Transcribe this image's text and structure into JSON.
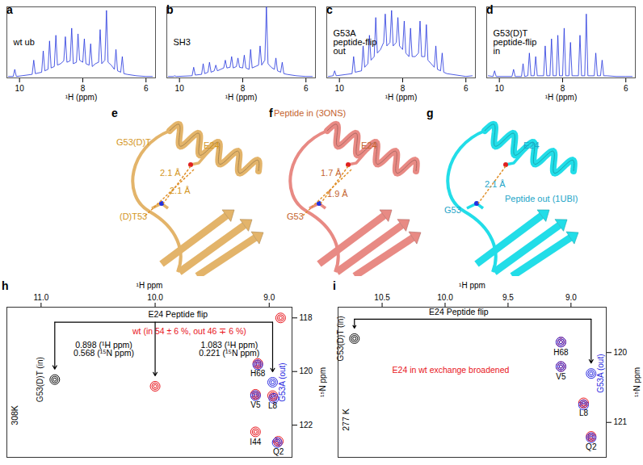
{
  "chart_data": [
    {
      "type": "line",
      "panel": "a",
      "annotations": [
        {
          "text": "wt ub",
          "color": "#000000"
        }
      ],
      "x_label": "¹H (ppm)",
      "color": "#2233dd",
      "x": [
        10.35,
        10.2,
        10.15,
        10.1,
        9.6,
        9.55,
        9.5,
        9.3,
        9.25,
        9.2,
        9.1,
        9.05,
        9.0,
        8.9,
        8.85,
        8.8,
        8.7,
        8.6,
        8.55,
        8.5,
        8.4,
        8.35,
        8.3,
        8.2,
        8.15,
        8.1,
        8.0,
        7.95,
        7.9,
        7.8,
        7.75,
        7.7,
        7.6,
        7.5,
        7.45,
        7.4,
        7.3,
        7.25,
        7.2,
        7.1,
        7.0,
        6.95,
        6.9,
        6.8,
        6.75,
        6.7,
        6.6,
        6.3,
        6.0,
        5.8
      ],
      "values": [
        2,
        2,
        12,
        2,
        5,
        25,
        6,
        8,
        38,
        10,
        12,
        52,
        14,
        16,
        60,
        18,
        20,
        24,
        58,
        22,
        24,
        70,
        20,
        22,
        62,
        25,
        22,
        55,
        20,
        18,
        48,
        16,
        20,
        22,
        68,
        20,
        25,
        95,
        22,
        18,
        12,
        40,
        10,
        8,
        30,
        6,
        5,
        3,
        2,
        2
      ],
      "xlim": [
        10.4,
        5.7
      ],
      "xticks": [
        10,
        8,
        6
      ],
      "ylim": [
        0,
        100
      ],
      "tick_labels": "x"
    },
    {
      "type": "line",
      "panel": "b",
      "annotations": [
        {
          "text": "SH3",
          "color": "#000000"
        }
      ],
      "x_label": "¹H (ppm)",
      "color": "#2233dd",
      "x": [
        10.35,
        10.2,
        10.15,
        10.1,
        9.6,
        9.55,
        9.5,
        9.3,
        9.25,
        9.2,
        9.1,
        9.05,
        9.0,
        8.9,
        8.85,
        8.8,
        8.7,
        8.6,
        8.55,
        8.5,
        8.4,
        8.35,
        8.3,
        8.2,
        8.15,
        8.1,
        8.0,
        7.95,
        7.9,
        7.8,
        7.75,
        7.7,
        7.6,
        7.5,
        7.45,
        7.4,
        7.3,
        7.25,
        7.2,
        7.1,
        7.0,
        6.95,
        6.9,
        6.8,
        6.75,
        6.7,
        6.6,
        6.3,
        6.0,
        5.8
      ],
      "values": [
        2,
        2,
        3,
        2,
        3,
        15,
        4,
        5,
        20,
        6,
        8,
        22,
        8,
        10,
        18,
        10,
        12,
        14,
        25,
        14,
        15,
        30,
        14,
        16,
        28,
        15,
        14,
        32,
        14,
        12,
        40,
        14,
        16,
        18,
        45,
        18,
        25,
        100,
        20,
        15,
        12,
        28,
        10,
        8,
        22,
        6,
        5,
        3,
        2,
        2
      ],
      "xlim": [
        10.4,
        5.7
      ],
      "xticks": [
        10,
        8,
        6
      ],
      "ylim": [
        0,
        100
      ],
      "tick_labels": "x"
    },
    {
      "type": "line",
      "panel": "c",
      "annotations": [
        {
          "text": "G53A\npeptide-flip\nout",
          "color": "#000000"
        }
      ],
      "x_label": "¹H (ppm)",
      "color": "#2233dd",
      "x": [
        10.35,
        10.2,
        10.15,
        10.1,
        9.6,
        9.55,
        9.5,
        9.3,
        9.25,
        9.2,
        9.1,
        9.05,
        9.0,
        8.9,
        8.85,
        8.8,
        8.7,
        8.6,
        8.55,
        8.5,
        8.4,
        8.35,
        8.3,
        8.2,
        8.15,
        8.1,
        8.0,
        7.95,
        7.9,
        7.8,
        7.75,
        7.7,
        7.6,
        7.5,
        7.45,
        7.4,
        7.3,
        7.25,
        7.2,
        7.1,
        7.0,
        6.95,
        6.9,
        6.8,
        6.75,
        6.7,
        6.6,
        6.3,
        6.0,
        5.8
      ],
      "values": [
        2,
        3,
        10,
        3,
        6,
        30,
        8,
        10,
        45,
        15,
        20,
        60,
        25,
        30,
        85,
        35,
        40,
        50,
        90,
        45,
        50,
        95,
        45,
        50,
        85,
        45,
        40,
        80,
        35,
        30,
        70,
        30,
        30,
        35,
        80,
        30,
        30,
        75,
        25,
        20,
        15,
        45,
        12,
        10,
        35,
        8,
        6,
        4,
        2,
        3
      ],
      "xlim": [
        10.4,
        5.7
      ],
      "xticks": [
        10,
        8,
        6
      ],
      "ylim": [
        0,
        100
      ],
      "tick_labels": "x"
    },
    {
      "type": "line",
      "panel": "d",
      "annotations": [
        {
          "text": "G53(D)T\npeptide-flip\nin",
          "color": "#000000"
        }
      ],
      "x_label": "¹H (ppm)",
      "color": "#2233dd",
      "x": [
        10.35,
        10.2,
        10.15,
        10.1,
        9.6,
        9.55,
        9.5,
        9.3,
        9.25,
        9.2,
        9.1,
        9.05,
        9.0,
        8.9,
        8.85,
        8.8,
        8.7,
        8.6,
        8.55,
        8.5,
        8.4,
        8.35,
        8.3,
        8.2,
        8.15,
        8.1,
        8.0,
        7.95,
        7.9,
        7.8,
        7.75,
        7.7,
        7.6,
        7.5,
        7.45,
        7.4,
        7.3,
        7.25,
        7.2,
        7.1,
        7.0,
        6.95,
        6.9,
        6.8,
        6.75,
        6.7,
        6.6,
        6.3,
        6.0,
        5.8
      ],
      "values": [
        3,
        2,
        10,
        2,
        2,
        12,
        2,
        2,
        20,
        2,
        3,
        35,
        3,
        3,
        30,
        3,
        3,
        3,
        45,
        3,
        3,
        55,
        3,
        3,
        60,
        3,
        3,
        70,
        3,
        3,
        50,
        3,
        3,
        3,
        60,
        3,
        3,
        90,
        3,
        3,
        3,
        35,
        3,
        3,
        25,
        3,
        3,
        2,
        2,
        2
      ],
      "xlim": [
        10.4,
        5.7
      ],
      "xticks": [
        10,
        8,
        6
      ],
      "ylim": [
        0,
        100
      ],
      "tick_labels": "x"
    },
    {
      "type": "structure",
      "panel": "e",
      "color": "#e3b46a",
      "labels": [
        {
          "text": "G53(D)T",
          "color": "#d4961e"
        },
        {
          "text": "E24",
          "color": "#d4961e"
        },
        {
          "text": "2.1 Å",
          "color": "#d4961e"
        },
        {
          "text": "2.1 Å",
          "color": "#d4961e"
        },
        {
          "text": "(D)T53",
          "color": "#d4961e"
        }
      ]
    },
    {
      "type": "structure",
      "panel": "f",
      "color": "#e88a84",
      "labels": [
        {
          "text": "Peptide in (3ONS)",
          "color": "#c4622d"
        },
        {
          "text": "E24",
          "color": "#c4622d"
        },
        {
          "text": "1.7 Å",
          "color": "#c4622d"
        },
        {
          "text": "1.9 Å",
          "color": "#c4622d"
        },
        {
          "text": "G53",
          "color": "#c4622d"
        }
      ]
    },
    {
      "type": "structure",
      "panel": "g",
      "color": "#22dde8",
      "labels": [
        {
          "text": "E24",
          "color": "#1ea5c8"
        },
        {
          "text": "G53",
          "color": "#1ea5c8"
        },
        {
          "text": "2.1 Å",
          "color": "#1ea5c8"
        },
        {
          "text": "Peptide out (1UBI)",
          "color": "#1ea5c8"
        }
      ]
    },
    {
      "type": "scatter",
      "panel": "h",
      "x_label": "¹H ppm",
      "y_label": "¹⁵N ppm",
      "xlim": [
        11.3,
        8.8
      ],
      "xticks": [
        {
          "value": 11,
          "label": "11.0"
        },
        {
          "value": 10,
          "label": "10.0"
        },
        {
          "value": 9,
          "label": "9.0"
        }
      ],
      "ylim": [
        123.2,
        117.6
      ],
      "yticks": [
        118,
        120,
        122
      ],
      "series": [
        {
          "name": "G53(D)T (in)",
          "color": "#111111",
          "x": [
            10.88
          ],
          "values": [
            120.3
          ],
          "labels": [
            null
          ]
        },
        {
          "color": "#e8141b",
          "x": [
            10.0,
            9.1,
            9.12,
            8.97,
            9.12,
            8.92,
            8.9
          ],
          "values": [
            120.55,
            119.7,
            120.85,
            120.9,
            122.25,
            122.6,
            118.0
          ],
          "labels": [
            null,
            "H68",
            "V5",
            "L8",
            "I44",
            "Q2",
            null
          ]
        },
        {
          "name": "G53A (out)",
          "color": "#2a2ae0",
          "x": [
            8.97,
            9.1,
            9.12,
            8.96,
            8.93
          ],
          "values": [
            120.4,
            119.75,
            120.9,
            121.0,
            122.65
          ],
          "labels": [
            null,
            null,
            null,
            null,
            null
          ]
        }
      ],
      "annotations": [
        {
          "text": "E24 Peptide flip",
          "color": "#000000"
        },
        {
          "text": "wt (in 54 ± 6 %, out 46 ∓ 6 %)",
          "color": "#e8141b"
        },
        {
          "text": "0.898 (¹H ppm)\n0.568 (¹⁵N ppm)",
          "color": "#000000"
        },
        {
          "text": "1.083 (¹H ppm)\n0.221 (¹⁵N ppm)",
          "color": "#000000"
        },
        {
          "text": "308K",
          "color": "#000000"
        }
      ]
    },
    {
      "type": "scatter",
      "panel": "i",
      "x_label": "¹H ppm",
      "y_label": "¹⁵N ppm",
      "xlim": [
        10.85,
        8.72
      ],
      "xticks": [
        {
          "value": 10.5,
          "label": "10.5"
        },
        {
          "value": 10,
          "label": "10.0"
        },
        {
          "value": 9.5,
          "label": "9.5"
        },
        {
          "value": 9,
          "label": "9.0"
        }
      ],
      "ylim": [
        121.5,
        119.35
      ],
      "yticks": [
        120,
        121
      ],
      "series": [
        {
          "name": "G53(D)T (in)",
          "color": "#111111",
          "x": [
            10.72
          ],
          "values": [
            119.8
          ],
          "labels": [
            null
          ]
        },
        {
          "color": "#e8141b",
          "x": [
            9.08,
            9.08,
            8.9,
            8.84
          ],
          "values": [
            119.85,
            120.2,
            120.72,
            121.2
          ],
          "labels": [
            "H68",
            "V5",
            "L8",
            "Q2"
          ]
        },
        {
          "name": "G53A (out)",
          "color": "#2a2ae0",
          "x": [
            8.84,
            9.08,
            9.08,
            8.9,
            8.84
          ],
          "values": [
            120.3,
            119.85,
            120.2,
            120.75,
            121.22
          ],
          "labels": [
            null,
            null,
            null,
            null,
            null
          ]
        }
      ],
      "annotations": [
        {
          "text": "E24 Peptide flip",
          "color": "#000000"
        },
        {
          "text": "E24 in wt exchange broadened",
          "color": "#e8141b"
        },
        {
          "text": "277 K",
          "color": "#000000"
        }
      ]
    }
  ]
}
